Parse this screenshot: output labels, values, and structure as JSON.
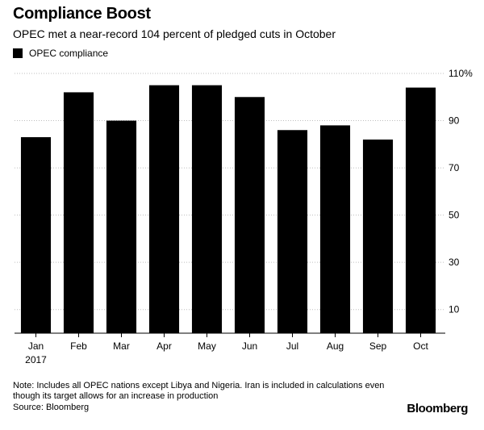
{
  "title": "Compliance Boost",
  "subtitle": "OPEC met a near-record 104 percent of pledged cuts in October",
  "note": "Note: Includes all OPEC nations except Libya and Nigeria. Iran is included in calculations even though its target allows for an increase in production",
  "source": "Source: Bloomberg",
  "brand": "Bloomberg",
  "chart_data": {
    "type": "bar",
    "categories": [
      "Jan",
      "Feb",
      "Mar",
      "Apr",
      "May",
      "Jun",
      "Jul",
      "Aug",
      "Sep",
      "Oct"
    ],
    "sub_label": "2017",
    "series": [
      {
        "name": "OPEC compliance",
        "values": [
          83,
          102,
          90,
          105,
          105,
          100,
          86,
          88,
          82,
          104
        ],
        "color": "#000000"
      }
    ],
    "yticks": [
      10,
      30,
      50,
      70,
      90,
      110
    ],
    "ytick_labels": [
      "10",
      "30",
      "50",
      "70",
      "90",
      "110%"
    ],
    "ylim": [
      0,
      110
    ],
    "y_axis_side": "right",
    "grid": true,
    "legend_position": "top-left"
  }
}
